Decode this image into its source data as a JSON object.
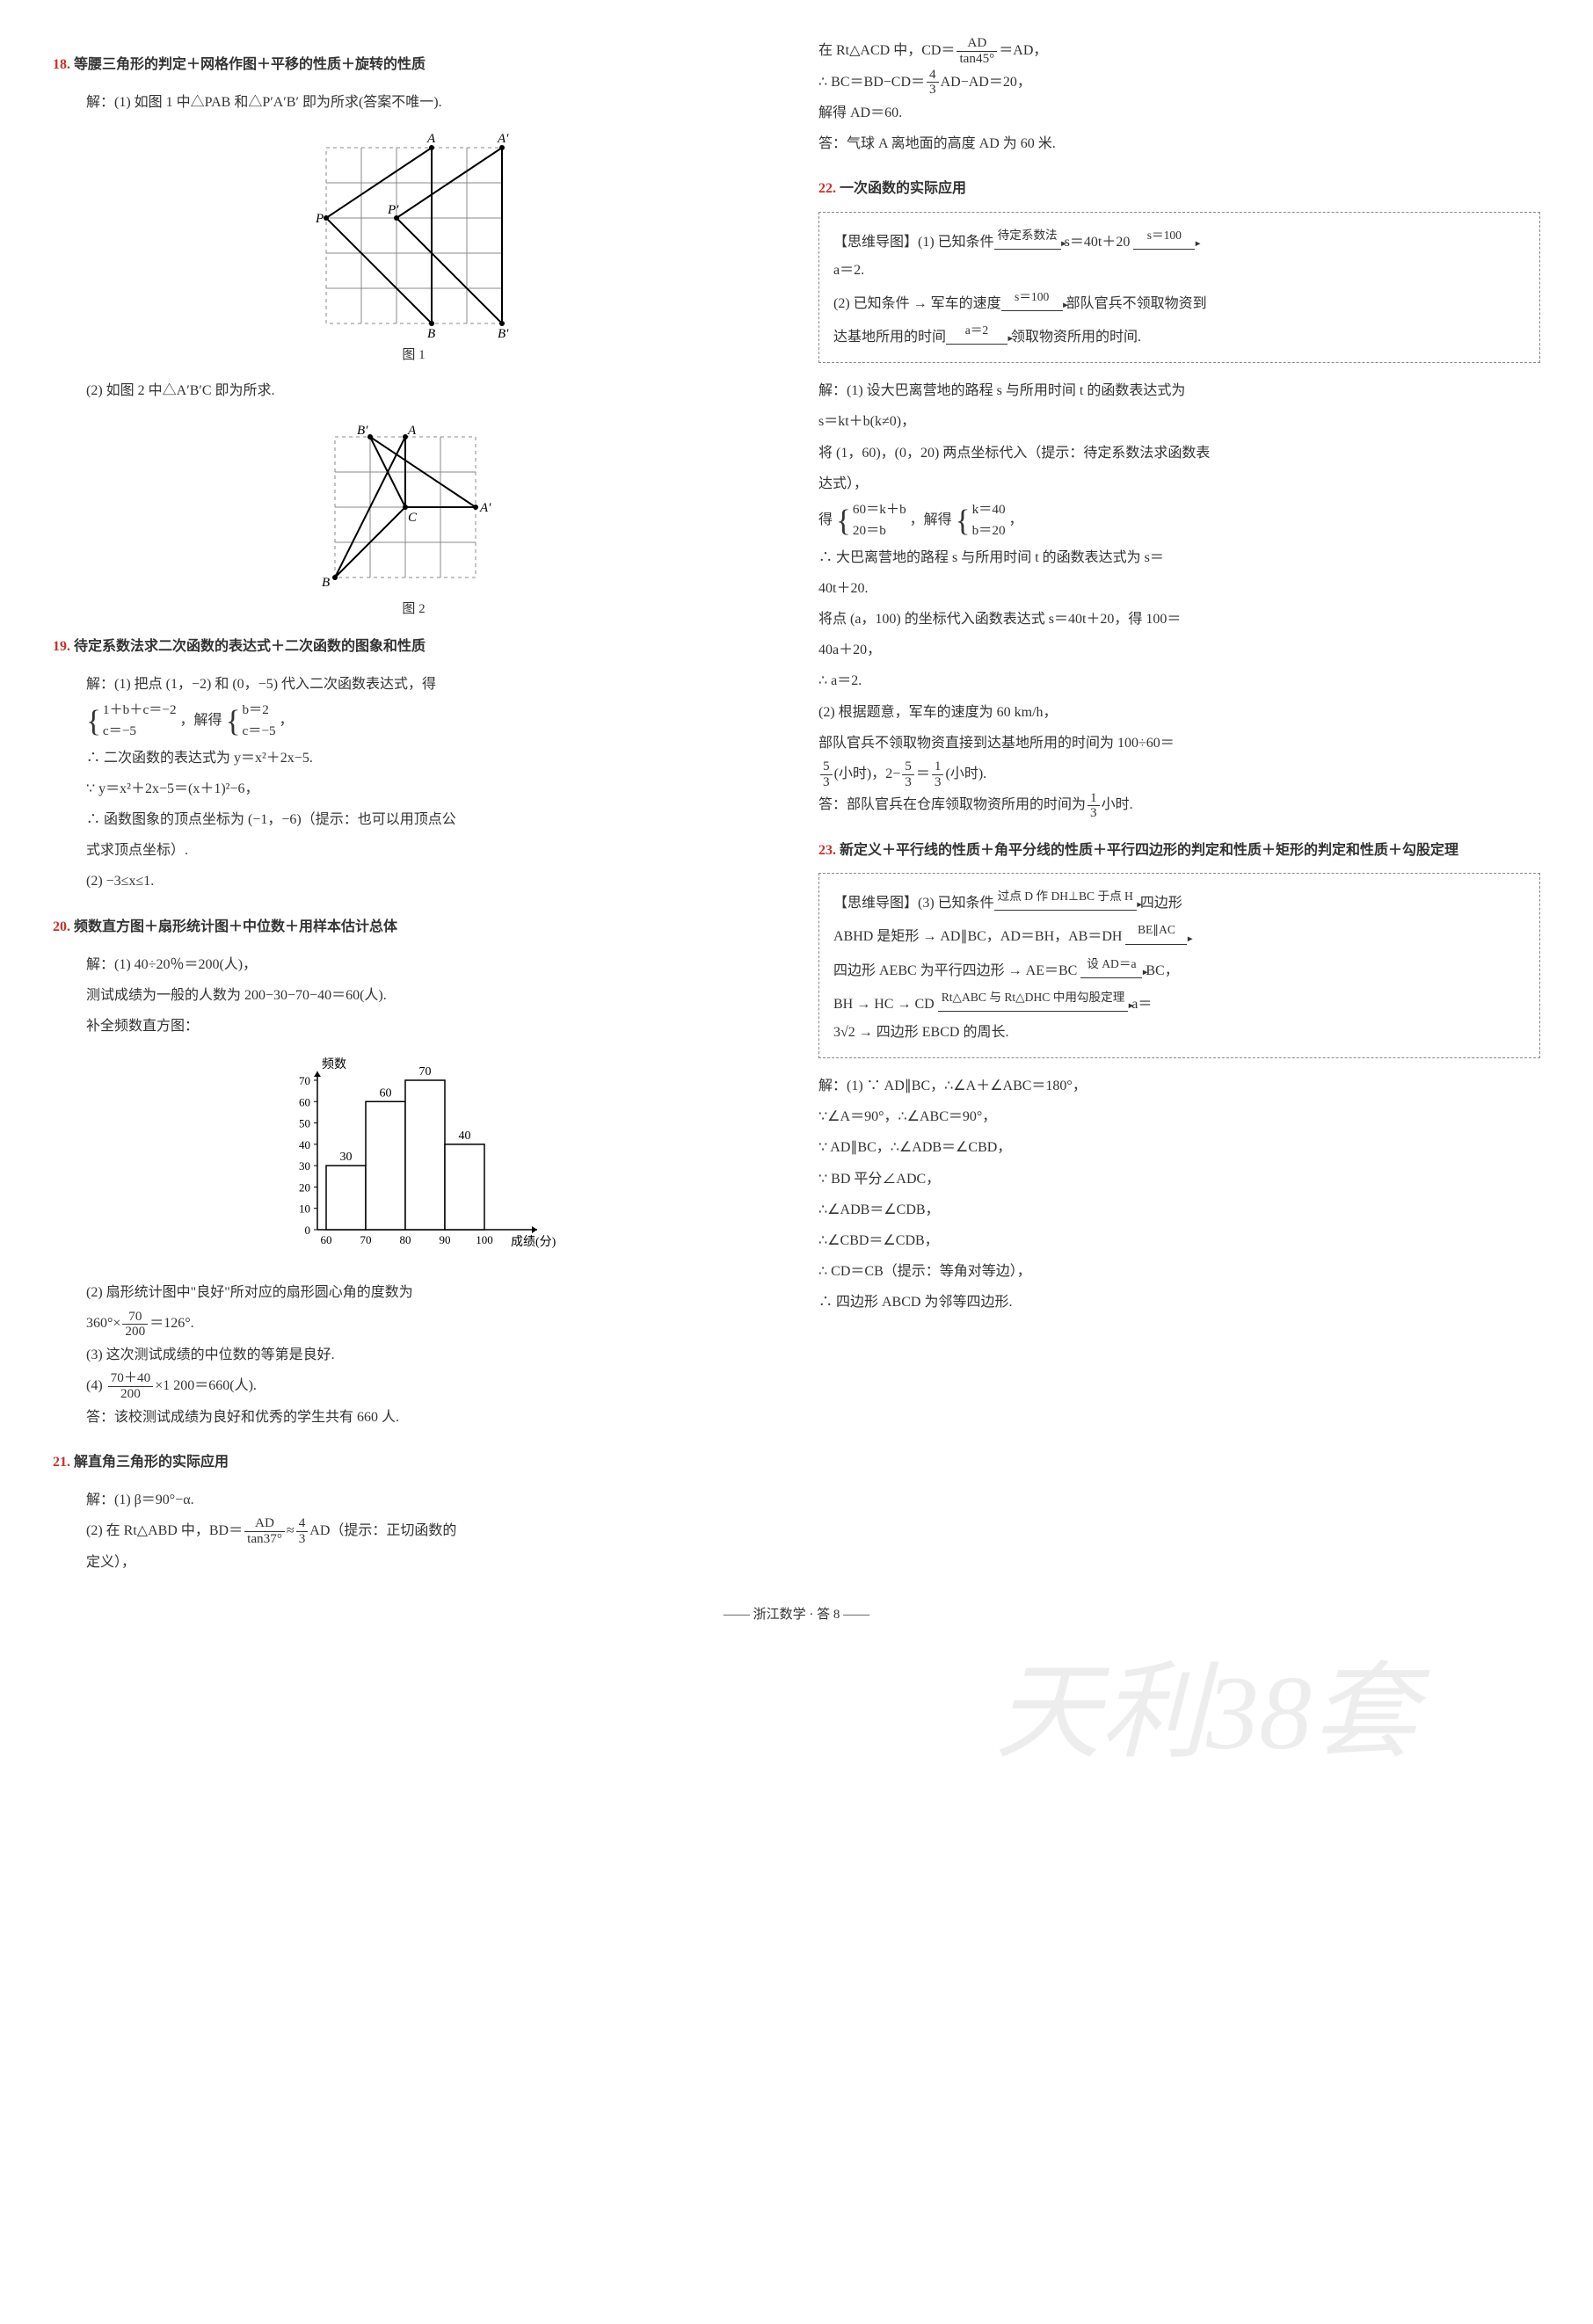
{
  "q18": {
    "num": "18.",
    "title": "等腰三角形的判定＋网格作图＋平移的性质＋旋转的性质",
    "l1": "解：(1) 如图 1 中△PAB 和△P′A′B′ 即为所求(答案不唯一).",
    "fig1_label": "图 1",
    "l2": "(2) 如图 2 中△A′B′C 即为所求.",
    "fig2_label": "图 2",
    "fig1": {
      "labels": {
        "P": "P",
        "Pp": "P′",
        "A": "A",
        "Ap": "A′",
        "B": "B",
        "Bp": "B′"
      },
      "grid_color": "#888",
      "line_color": "#000"
    },
    "fig2": {
      "labels": {
        "A": "A",
        "Ap": "A′",
        "B": "B",
        "Bp": "B′",
        "C": "C"
      },
      "grid_color": "#888",
      "line_color": "#000"
    }
  },
  "q19": {
    "num": "19.",
    "title": "待定系数法求二次函数的表达式＋二次函数的图象和性质",
    "l1": "解：(1) 把点 (1，−2) 和 (0，−5) 代入二次函数表达式，得",
    "br1_a": "1＋b＋c＝−2",
    "br1_b": "c＝−5",
    "br_mid": "，解得",
    "br2_a": "b＝2",
    "br2_b": "c＝−5",
    "br_end": "，",
    "l2": "∴ 二次函数的表达式为 y＝x²＋2x−5.",
    "l3": "∵ y＝x²＋2x−5＝(x＋1)²−6，",
    "l4": "∴ 函数图象的顶点坐标为 (−1，−6)（提示：也可以用顶点公",
    "l4b": "式求顶点坐标）.",
    "l5": "(2) −3≤x≤1."
  },
  "q20": {
    "num": "20.",
    "title": "频数直方图＋扇形统计图＋中位数＋用样本估计总体",
    "l1": "解：(1) 40÷20％＝200(人)，",
    "l2": "测试成绩为一般的人数为 200−30−70−40＝60(人).",
    "l3": "补全频数直方图：",
    "chart": {
      "type": "bar",
      "xlabel": "成绩(分)",
      "ylabel": "频数",
      "categories": [
        "60",
        "70",
        "80",
        "90",
        "100"
      ],
      "values": [
        30,
        60,
        70,
        40
      ],
      "value_labels": [
        "30",
        "60",
        "70",
        "40"
      ],
      "ylim": [
        0,
        70
      ],
      "ytick_step": 10,
      "yticks": [
        "0",
        "10",
        "20",
        "30",
        "40",
        "50",
        "60",
        "70"
      ],
      "bar_color": "#ffffff",
      "bar_border": "#000000",
      "axis_color": "#000000",
      "bg": "#ffffff"
    },
    "l4a": "(2) 扇形统计图中\"良好\"所对应的扇形圆心角的度数为",
    "l4b_pre": "360°×",
    "l4b_num": "70",
    "l4b_den": "200",
    "l4b_post": "＝126°.",
    "l5": "(3) 这次测试成绩的中位数的等第是良好.",
    "l6_pre": "(4) ",
    "l6_num": "70＋40",
    "l6_den": "200",
    "l6_post": "×1 200＝660(人).",
    "l7": "答：该校测试成绩为良好和优秀的学生共有 660 人."
  },
  "q21": {
    "num": "21.",
    "title": "解直角三角形的实际应用",
    "l1": "解：(1) β＝90°−α.",
    "l2_pre": "(2) 在 Rt△ABD 中，BD＝",
    "l2_num": "AD",
    "l2_den": "tan37°",
    "l2_mid": "≈",
    "l2_num2": "4",
    "l2_den2": "3",
    "l2_post": "AD（提示：正切函数的",
    "l2b": "定义），",
    "r1_pre": "在 Rt△ACD 中，CD＝",
    "r1_num": "AD",
    "r1_den": "tan45°",
    "r1_post": "＝AD，",
    "r2_pre": "∴ BC＝BD−CD＝",
    "r2_num": "4",
    "r2_den": "3",
    "r2_post": "AD−AD＝20，",
    "r3": "解得 AD＝60.",
    "r4": "答：气球 A 离地面的高度 AD 为 60 米."
  },
  "q22": {
    "num": "22.",
    "title": "一次函数的实际应用",
    "box_a_pre": "【思维导图】(1) 已知条件",
    "box_a_a1": "待定系数法",
    "box_a_mid": "s＝40t＋20",
    "box_a_a2": "s＝100",
    "box_a_end": "a＝2.",
    "box_b_pre": "(2) 已知条件 → 军车的速度",
    "box_b_a1": "s＝100",
    "box_b_mid": "部队官兵不领取物资到",
    "box_b2": "达基地所用的时间",
    "box_b_a2": "a＝2",
    "box_b_end": "领取物资所用的时间.",
    "l1": "解：(1) 设大巴离营地的路程 s 与所用时间 t 的函数表达式为",
    "l2": "s＝kt＋b(k≠0)，",
    "l3": "将 (1，60)，(0，20) 两点坐标代入（提示：待定系数法求函数表",
    "l3b": "达式），",
    "l4_pre": "得",
    "br1_a": "60＝k＋b",
    "br1_b": "20＝b",
    "br_mid": "，解得",
    "br2_a": "k＝40",
    "br2_b": "b＝20",
    "br_end": "，",
    "l5": "∴ 大巴离营地的路程 s 与所用时间 t 的函数表达式为 s＝",
    "l5b": "40t＋20.",
    "l6": "将点 (a，100) 的坐标代入函数表达式 s＝40t＋20，得 100＝",
    "l6b": "40a＋20，",
    "l7": "∴ a＝2.",
    "l8": "(2) 根据题意，军车的速度为 60 km/h，",
    "l9": "部队官兵不领取物资直接到达基地所用的时间为 100÷60＝",
    "l10_num": "5",
    "l10_den": "3",
    "l10_mid": "(小时)，2−",
    "l10_num2": "5",
    "l10_den2": "3",
    "l10_mid2": "＝",
    "l10_num3": "1",
    "l10_den3": "3",
    "l10_post": "(小时).",
    "l11_pre": "答：部队官兵在仓库领取物资所用的时间为",
    "l11_num": "1",
    "l11_den": "3",
    "l11_post": "小时."
  },
  "q23": {
    "num": "23.",
    "title": "新定义＋平行线的性质＋角平分线的性质＋平行四边形的判定和性质＋矩形的判定和性质＋勾股定理",
    "box_a": "【思维导图】(3) 已知条件",
    "box_a_a1": "过点 D 作 DH⊥BC 于点 H",
    "box_a_end": "四边形",
    "box_b": "ABHD 是矩形 → AD∥BC，AD＝BH，AB＝DH",
    "box_b_a1": "BE∥AC",
    "box_c": "四边形 AEBC 为平行四边形 → AE＝BC",
    "box_c_a1": "设 AD＝a",
    "box_c_end": "BC，",
    "box_d": "BH → HC → CD",
    "box_d_a1": "Rt△ABC 与 Rt△DHC 中用勾股定理",
    "box_d_end": "a＝",
    "box_e": "3√2 → 四边形 EBCD 的周长.",
    "l1": "解：(1) ∵ AD∥BC，∴∠A＋∠ABC＝180°，",
    "l2": "∵∠A＝90°，∴∠ABC＝90°，",
    "l3": "∵ AD∥BC，∴∠ADB＝∠CBD，",
    "l4": "∵ BD 平分∠ADC，",
    "l5": "∴∠ADB＝∠CDB，",
    "l6": "∴∠CBD＝∠CDB，",
    "l7": "∴ CD＝CB（提示：等角对等边），",
    "l8": "∴ 四边形 ABCD 为邻等四边形."
  },
  "footer": "—— 浙江数学 · 答 8 ——",
  "watermark": "天利38套"
}
